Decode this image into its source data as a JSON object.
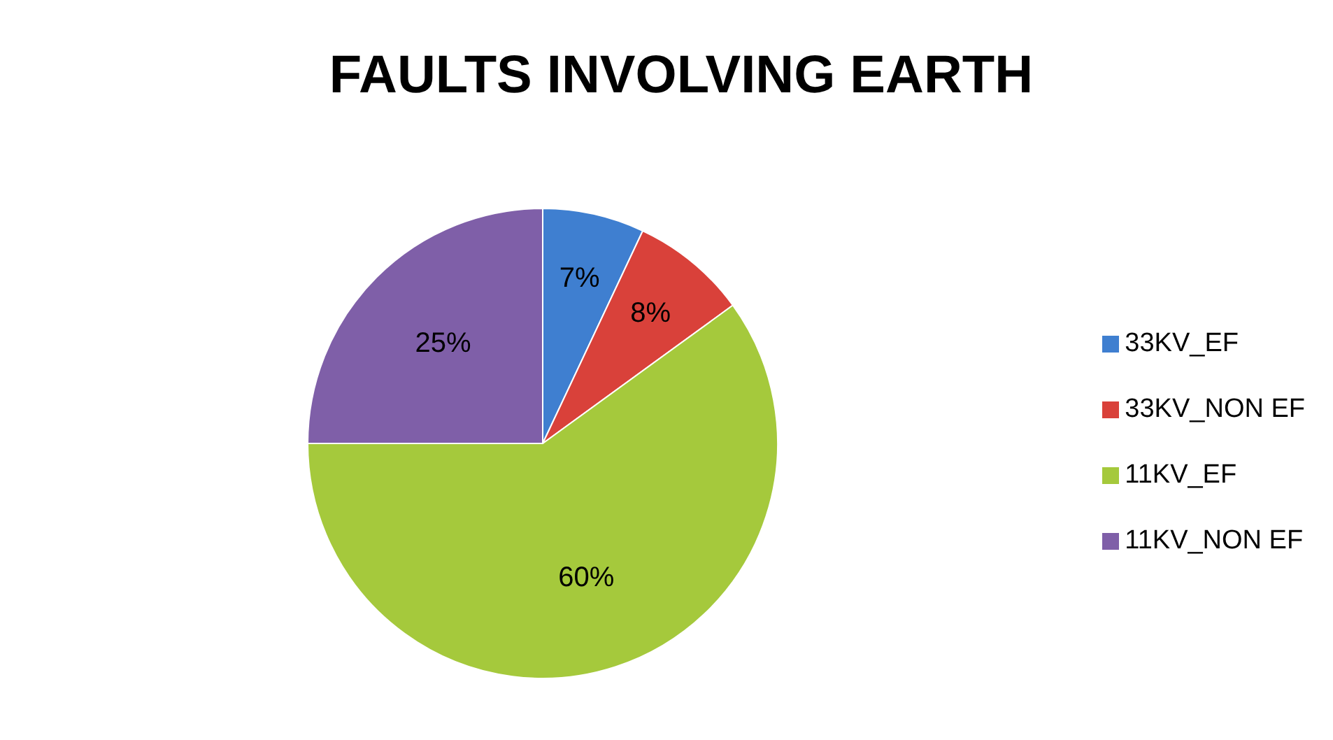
{
  "chart_data": {
    "type": "pie",
    "title": "FAULTS INVOLVING EARTH",
    "categories": [
      "33KV_EF",
      "33KV_NON EF",
      "11KV_EF",
      "11KV_NON EF"
    ],
    "values": [
      7,
      8,
      60,
      25
    ],
    "colors": [
      "#3f7fd0",
      "#d9413a",
      "#a5c93c",
      "#7f5fa8"
    ],
    "value_labels": [
      "7%",
      "8%",
      "60%",
      "25%"
    ],
    "legend": "right"
  }
}
